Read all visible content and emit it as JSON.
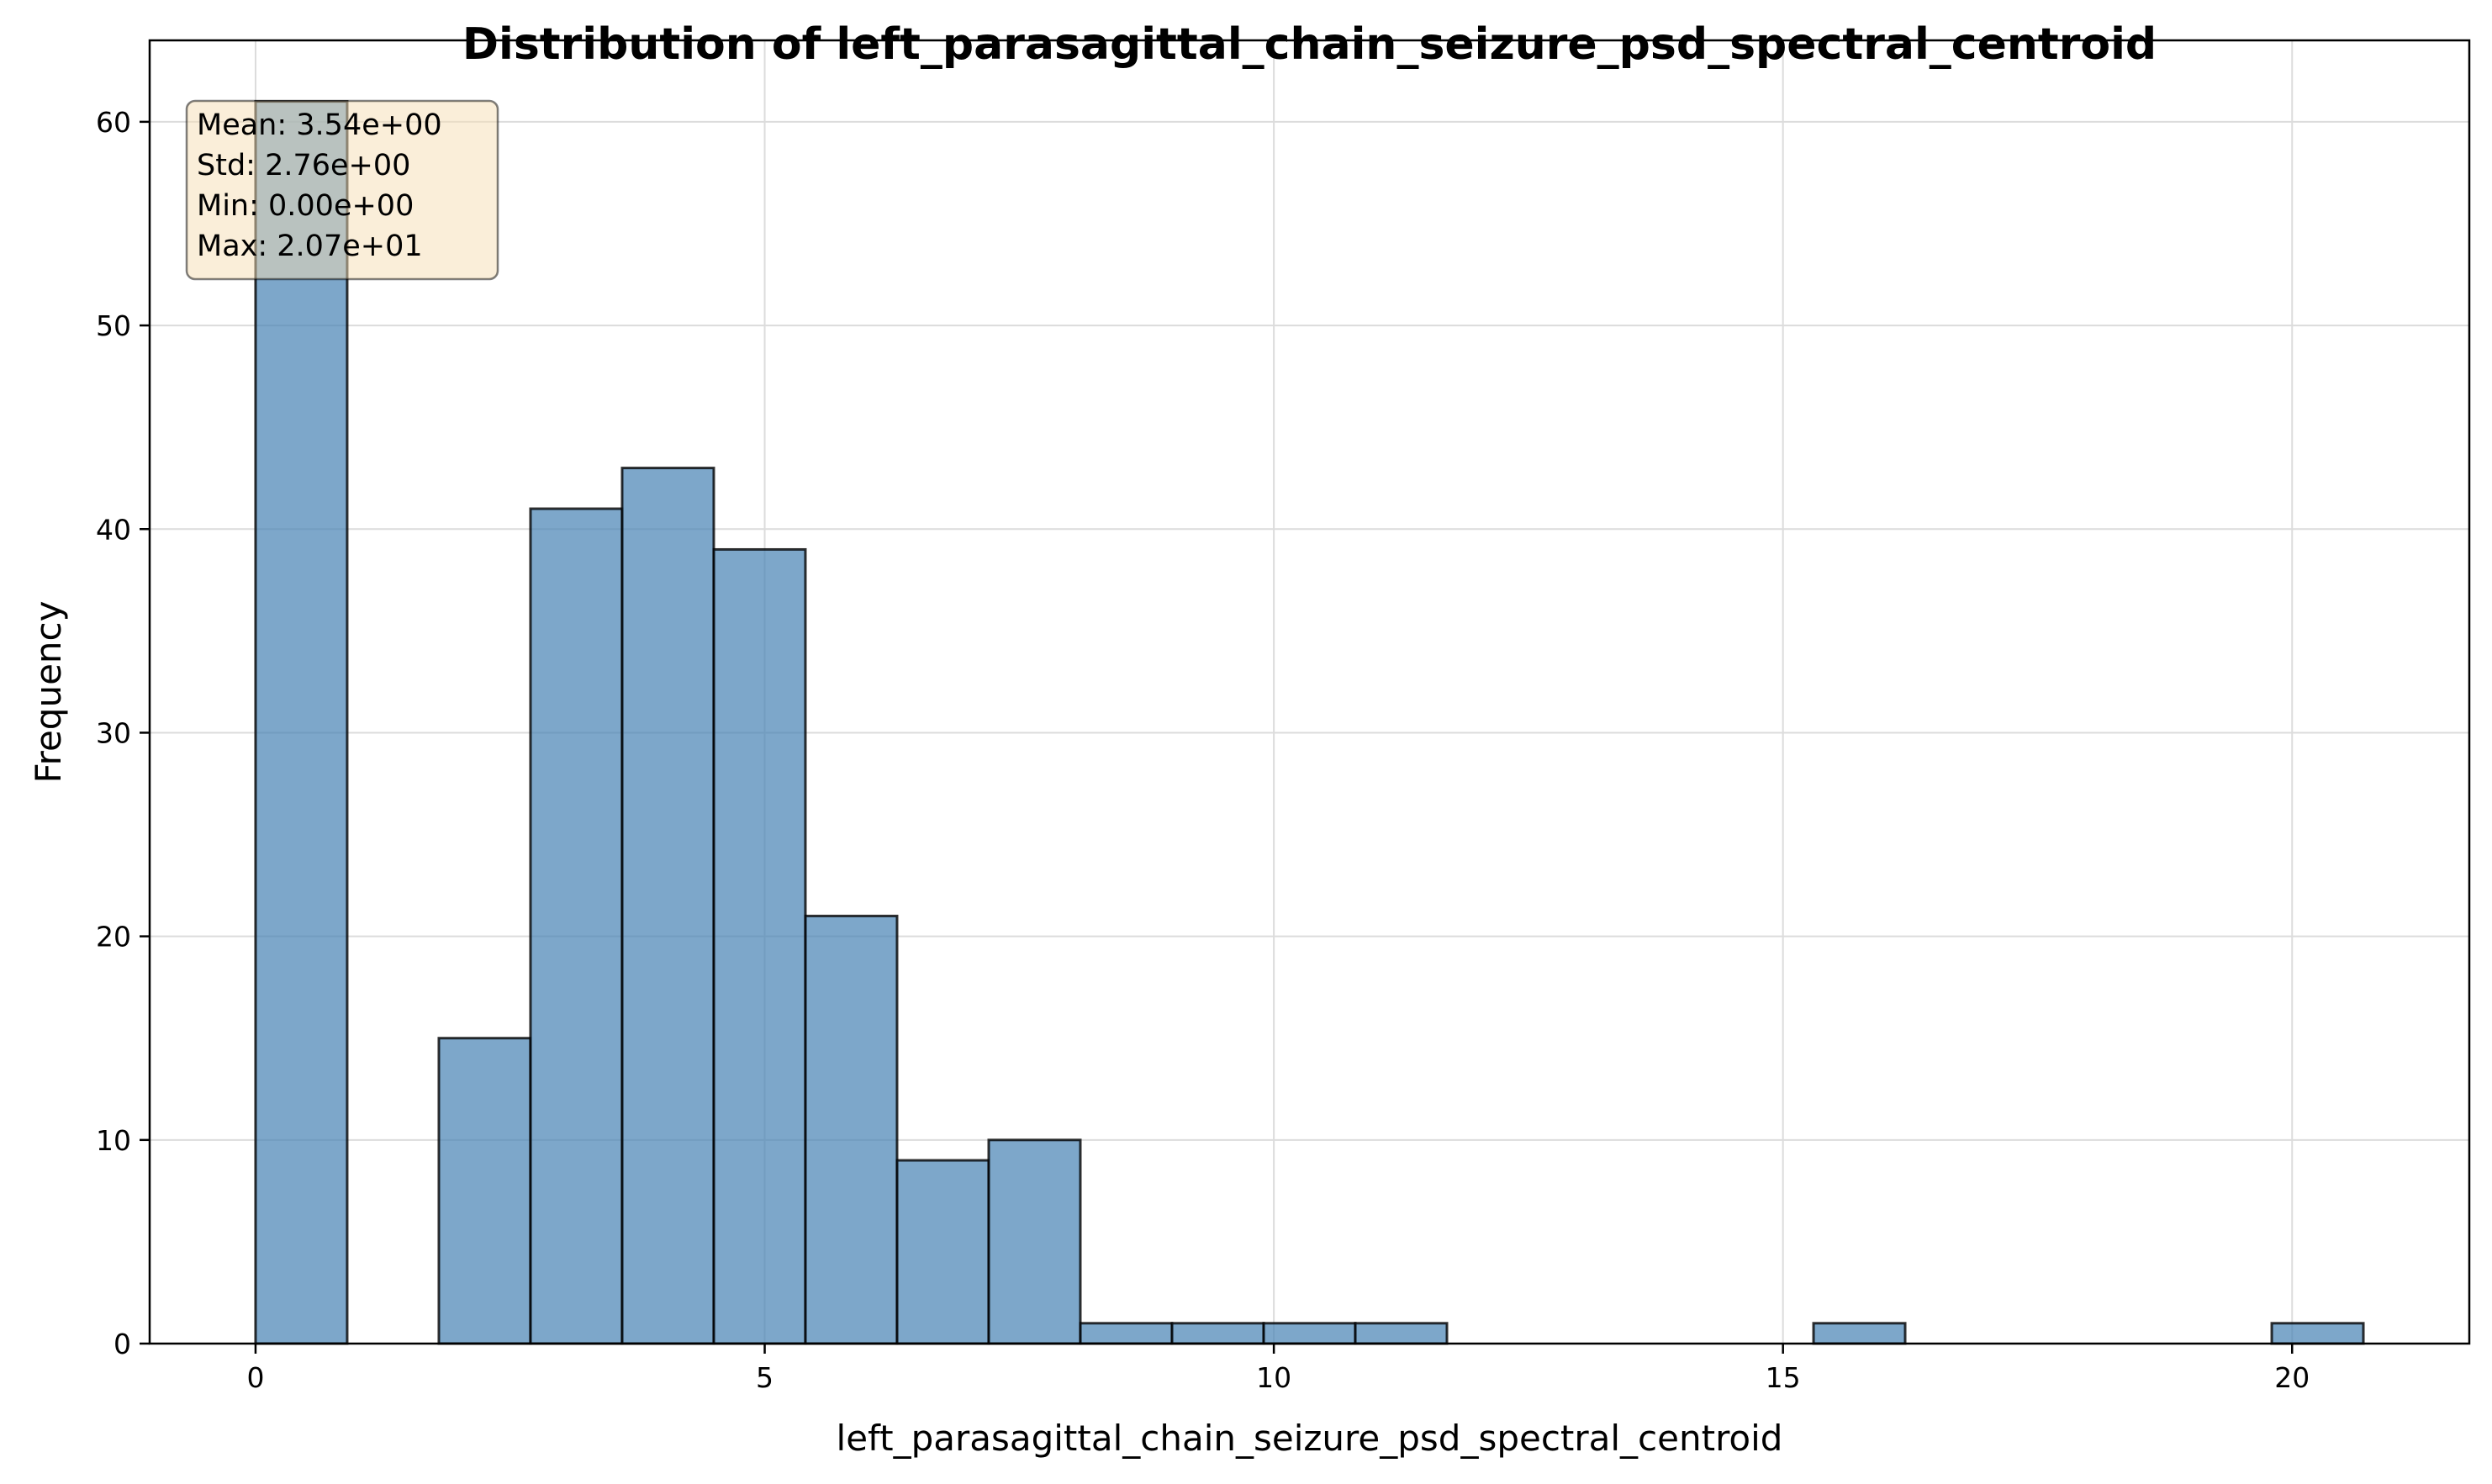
{
  "chart_data": {
    "type": "bar",
    "title": "Distribution of left_parasagittal_chain_seizure_psd_spectral_centroid",
    "xlabel": "left_parasagittal_chain_seizure_psd_spectral_centroid",
    "ylabel": "Frequency",
    "xlim": [
      -1.04,
      21.74
    ],
    "ylim": [
      0,
      64
    ],
    "xticks": [
      0,
      5,
      10,
      15,
      20
    ],
    "yticks": [
      0,
      10,
      20,
      30,
      40,
      50,
      60
    ],
    "bin_edges": [
      0,
      0.9,
      1.8,
      2.7,
      3.6,
      4.5,
      5.4,
      6.3,
      7.2,
      8.1,
      9.0,
      9.9,
      10.8,
      11.7,
      12.6,
      13.5,
      14.4,
      15.3,
      16.2,
      17.1,
      18.0,
      18.9,
      19.8,
      20.7
    ],
    "counts": [
      61,
      0,
      15,
      41,
      43,
      39,
      21,
      9,
      10,
      1,
      1,
      1,
      1,
      0,
      0,
      0,
      0,
      1,
      0,
      0,
      0,
      0,
      1
    ],
    "grid": true,
    "bar_color": "#4682b4",
    "bar_edge_color": "#000000",
    "stats_box": {
      "mean": "Mean: 3.54e+00",
      "std": "Std: 2.76e+00",
      "min": "Min: 0.00e+00",
      "max": "Max: 2.07e+01",
      "background": "#f5deb3"
    }
  }
}
